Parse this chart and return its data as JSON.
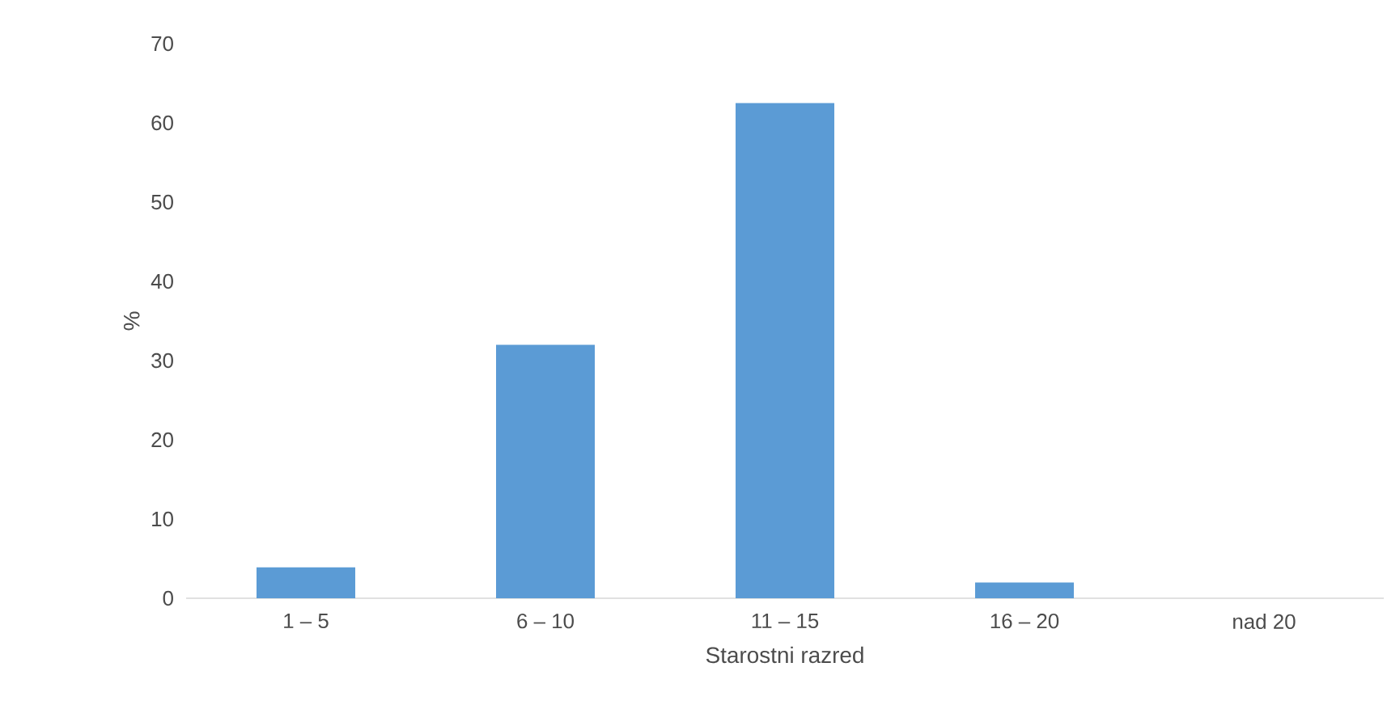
{
  "chart_data": {
    "type": "bar",
    "xlabel": "Starostni razred",
    "ylabel": "%",
    "categories": [
      "1 – 5",
      "6 – 10",
      "11 – 15",
      "16 – 20",
      "nad 20"
    ],
    "values": [
      3.9,
      32.0,
      62.5,
      2.0,
      0
    ],
    "color": "#5b9bd5",
    "ylim": [
      0,
      70
    ],
    "yticks": [
      0,
      10,
      20,
      30,
      40,
      50,
      60,
      70
    ]
  }
}
